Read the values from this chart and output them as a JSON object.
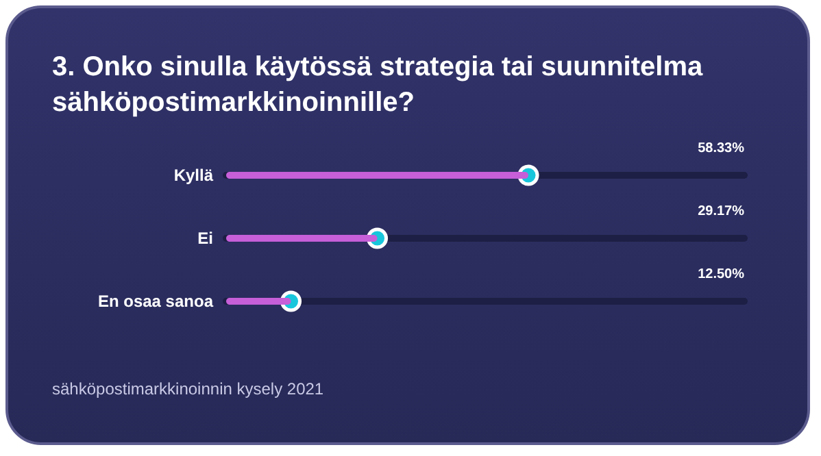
{
  "chart_data": {
    "type": "bar",
    "orientation": "horizontal",
    "title": "3. Onko sinulla käytössä strategia tai suunnitelma sähköpostimarkkinoinnille?",
    "categories": [
      "Kyllä",
      "Ei",
      "En osaa sanoa"
    ],
    "series": [
      {
        "color": "#c65fd8",
        "values": [
          58.33,
          29.17,
          12.5
        ]
      },
      {
        "type": "scatter",
        "color": "#18c6dc",
        "values": [
          58.33,
          29.17,
          12.5
        ],
        "value_labels": [
          "58.33%",
          "29.17%",
          "12.50%"
        ]
      }
    ],
    "grid": "y",
    "tick_labels": "y",
    "annotations": [
      "sähköpostimarkkinoinnin kysely 2021"
    ]
  }
}
